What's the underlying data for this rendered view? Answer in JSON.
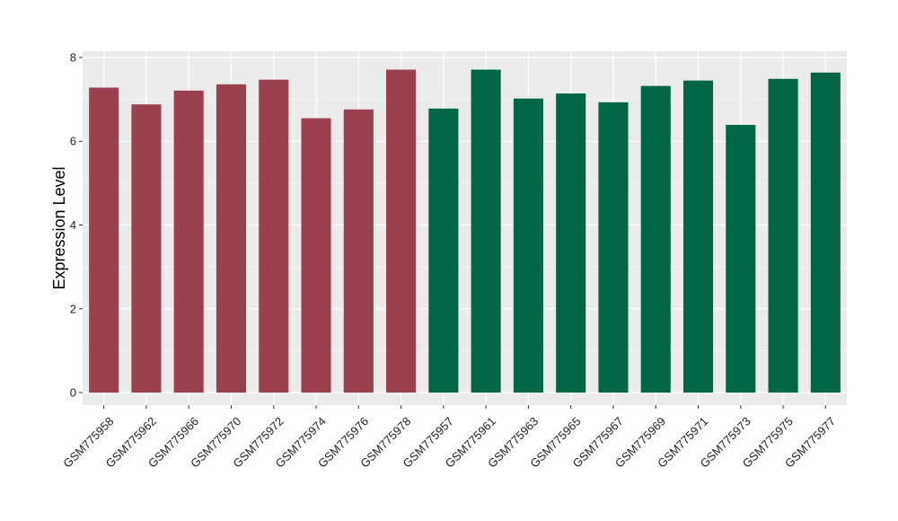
{
  "chart_data": {
    "type": "bar",
    "title": "",
    "xlabel": "",
    "ylabel": "Expression Level",
    "ylim": [
      -0.3,
      8.15
    ],
    "yticks": [
      0,
      2,
      4,
      6,
      8
    ],
    "grid": true,
    "categories": [
      "GSM775958",
      "GSM775962",
      "GSM775966",
      "GSM775970",
      "GSM775972",
      "GSM775974",
      "GSM775976",
      "GSM775978",
      "GSM775957",
      "GSM775961",
      "GSM775963",
      "GSM775965",
      "GSM775967",
      "GSM775969",
      "GSM775971",
      "GSM775973",
      "GSM775975",
      "GSM775977"
    ],
    "values": [
      7.28,
      6.88,
      7.21,
      7.36,
      7.47,
      6.55,
      6.76,
      7.71,
      6.78,
      7.71,
      7.02,
      7.14,
      6.93,
      7.32,
      7.45,
      6.39,
      7.49,
      7.64
    ],
    "bar_colors": [
      "#9b404f",
      "#9b404f",
      "#9b404f",
      "#9b404f",
      "#9b404f",
      "#9b404f",
      "#9b404f",
      "#9b404f",
      "#006646",
      "#006646",
      "#006646",
      "#006646",
      "#006646",
      "#006646",
      "#006646",
      "#006646",
      "#006646",
      "#006646"
    ],
    "panel_background": "#ebebeb",
    "grid_color": "#ffffff"
  }
}
